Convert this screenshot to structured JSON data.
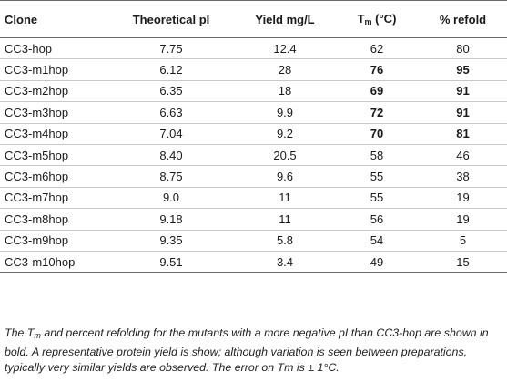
{
  "headers": {
    "clone": "Clone",
    "pi": "Theoretical pI",
    "yield": "Yield mg/L",
    "tm_main": "T",
    "tm_sub": "m",
    "tm_unit": " (°C)",
    "refold": "% refold"
  },
  "rows": [
    {
      "clone": "CC3-hop",
      "pi": "7.75",
      "yield": "12.4",
      "tm": "62",
      "refold": "80"
    },
    {
      "clone": "CC3-m1hop",
      "pi": "6.12",
      "yield": "28",
      "tm": "76",
      "refold": "95"
    },
    {
      "clone": "CC3-m2hop",
      "pi": "6.35",
      "yield": "18",
      "tm": "69",
      "refold": "91"
    },
    {
      "clone": "CC3-m3hop",
      "pi": "6.63",
      "yield": "9.9",
      "tm": "72",
      "refold": "91"
    },
    {
      "clone": "CC3-m4hop",
      "pi": "7.04",
      "yield": "9.2",
      "tm": "70",
      "refold": "81"
    },
    {
      "clone": "CC3-m5hop",
      "pi": "8.40",
      "yield": "20.5",
      "tm": "58",
      "refold": "46"
    },
    {
      "clone": "CC3-m6hop",
      "pi": "8.75",
      "yield": "9.6",
      "tm": "55",
      "refold": "38"
    },
    {
      "clone": "CC3-m7hop",
      "pi": "9.0",
      "yield": "11",
      "tm": "55",
      "refold": "19"
    },
    {
      "clone": "CC3-m8hop",
      "pi": "9.18",
      "yield": "11",
      "tm": "56",
      "refold": "19"
    },
    {
      "clone": "CC3-m9hop",
      "pi": "9.35",
      "yield": "5.8",
      "tm": "54",
      "refold": "5"
    },
    {
      "clone": "CC3-m10hop",
      "pi": "9.51",
      "yield": "3.4",
      "tm": "49",
      "refold": "15"
    }
  ],
  "caption": {
    "part1": "The ",
    "tm_main": "T",
    "tm_sub": "m",
    "part2": " and percent refolding for the mutants with a more negative pI than CC3-hop are shown in bold. A representative protein yield is show; although variation is seen between preparations, typically very similar yields are observed. The error on Tm is ± 1°C."
  }
}
